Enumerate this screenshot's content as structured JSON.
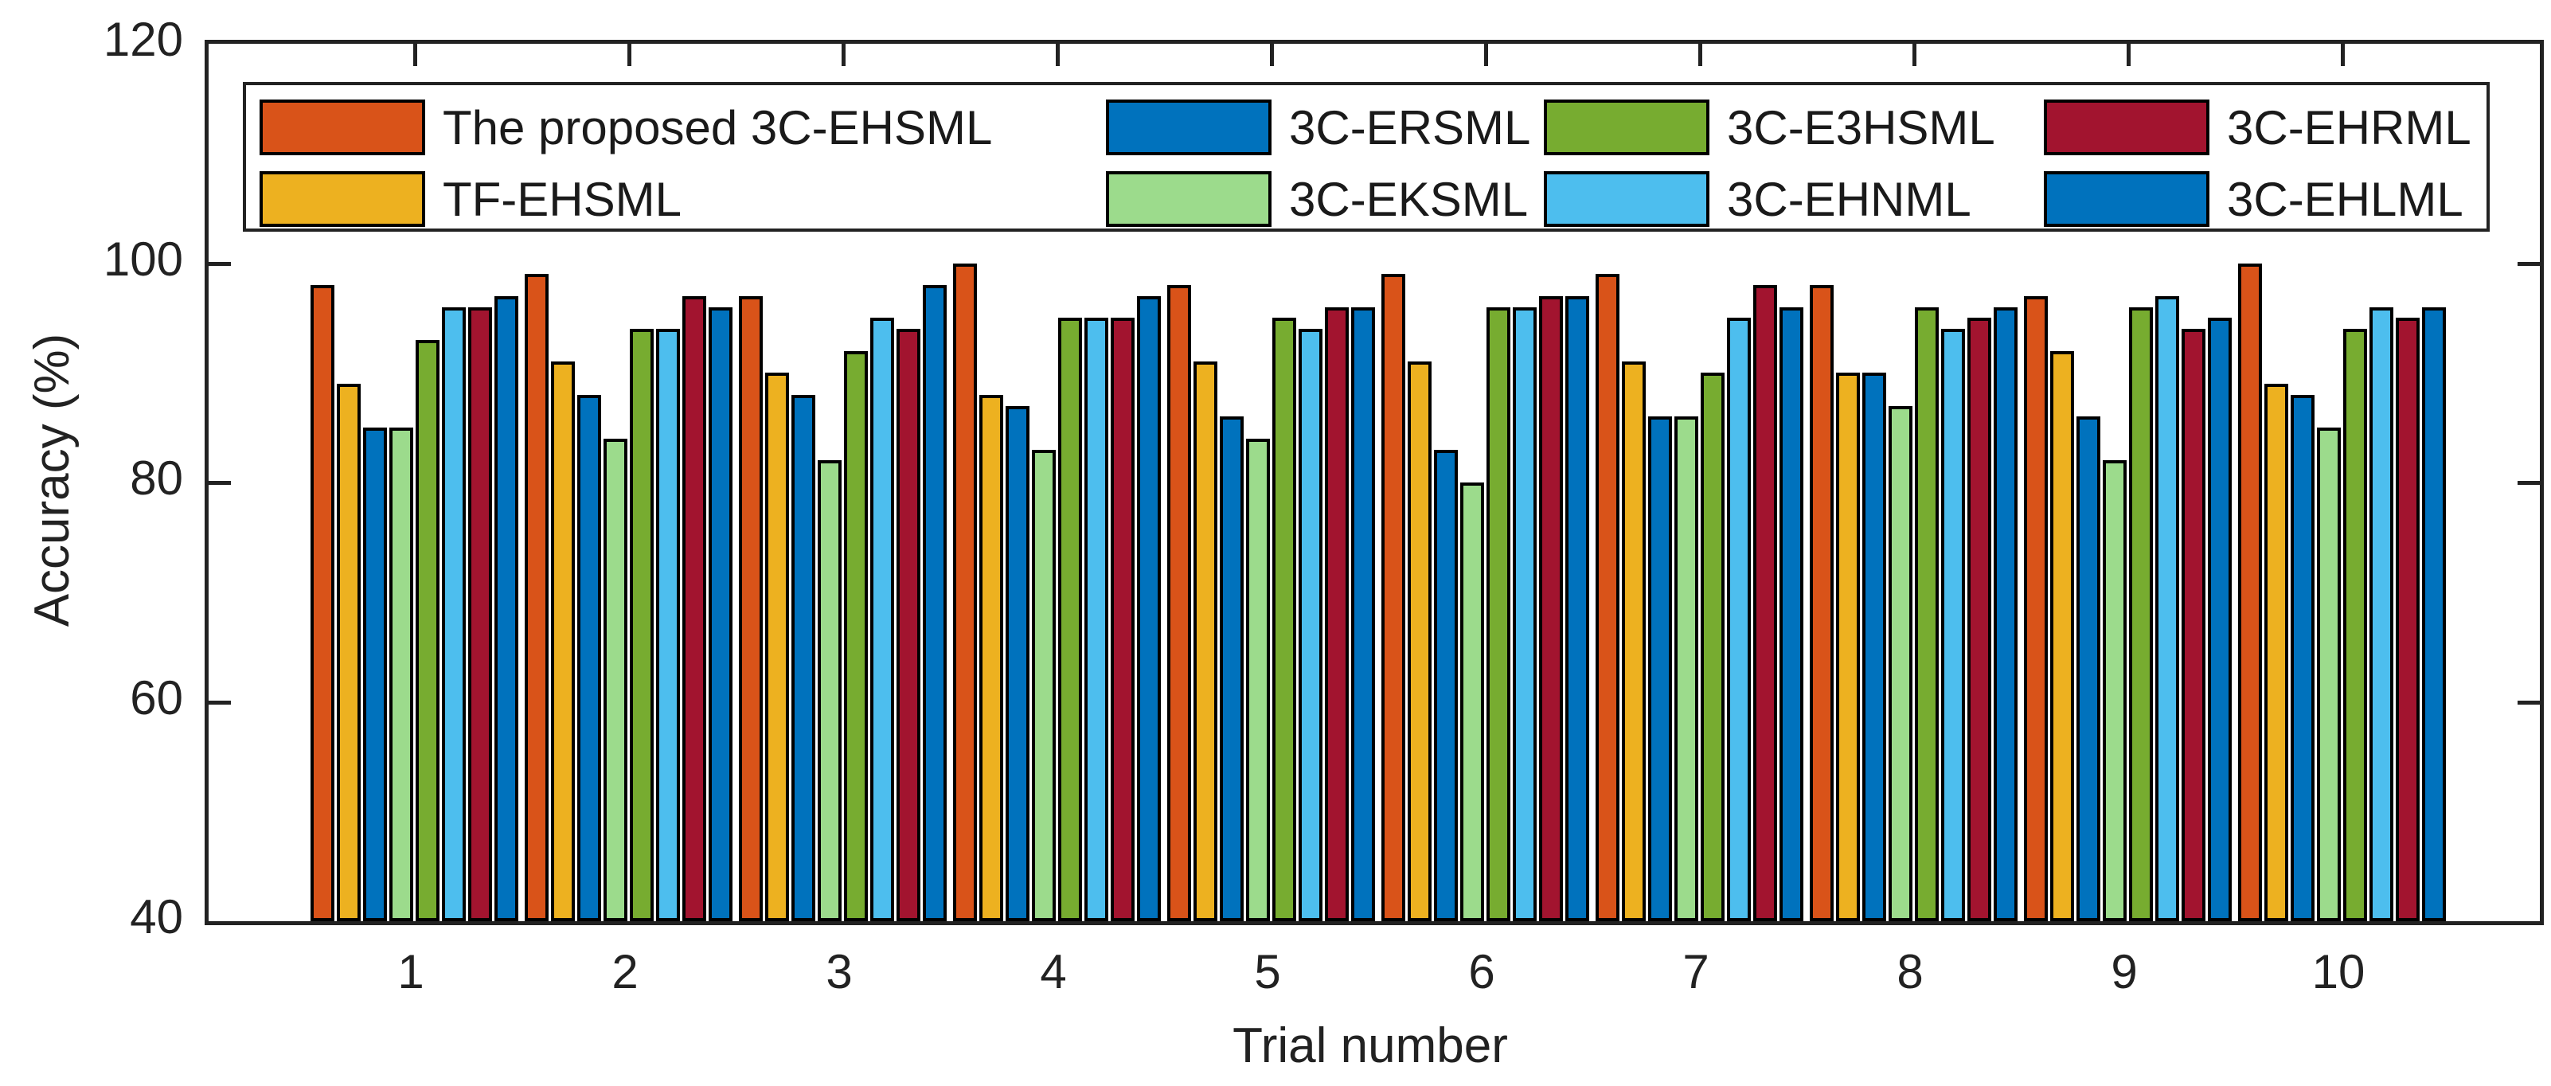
{
  "chart_data": {
    "type": "bar",
    "title": "",
    "xlabel": "Trial number",
    "ylabel": "Accuracy (%)",
    "ylim": [
      40,
      120
    ],
    "yticks": [
      40,
      60,
      80,
      100,
      120
    ],
    "y_tick_labels": [
      "40",
      "60",
      "80",
      "100",
      "120"
    ],
    "categories": [
      "1",
      "2",
      "3",
      "4",
      "5",
      "6",
      "7",
      "8",
      "9",
      "10"
    ],
    "grid": false,
    "legend_position": "top-inside",
    "legend_rows": 2,
    "legend_order": "column-major",
    "axis_color": "#222222",
    "bar_edge_color": "#000000",
    "series": [
      {
        "name": "The proposed 3C-EHSML",
        "color": "#D95319",
        "values": [
          98,
          99,
          97,
          100,
          98,
          99,
          99,
          98,
          97,
          100
        ]
      },
      {
        "name": "TF-EHSML",
        "color": "#EDB120",
        "values": [
          89,
          91,
          90,
          88,
          91,
          91,
          91,
          90,
          92,
          89
        ]
      },
      {
        "name": "3C-ERSML",
        "color": "#0072BD",
        "values": [
          85,
          88,
          88,
          87,
          86,
          83,
          86,
          90,
          86,
          88
        ]
      },
      {
        "name": "3C-EKSML",
        "color": "#9CDB8C",
        "values": [
          85,
          84,
          82,
          83,
          84,
          80,
          86,
          87,
          82,
          85
        ]
      },
      {
        "name": "3C-E3HSML",
        "color": "#77AC30",
        "values": [
          93,
          94,
          92,
          95,
          95,
          96,
          90,
          96,
          96,
          94
        ]
      },
      {
        "name": "3C-EHNML",
        "color": "#4DBEEE",
        "values": [
          96,
          94,
          95,
          95,
          94,
          96,
          95,
          94,
          97,
          96
        ]
      },
      {
        "name": "3C-EHRML",
        "color": "#A2142F",
        "values": [
          96,
          97,
          94,
          95,
          96,
          97,
          98,
          95,
          94,
          95
        ]
      },
      {
        "name": "3C-EHLML",
        "color": "#0072BD",
        "values": [
          97,
          96,
          98,
          97,
          96,
          97,
          96,
          96,
          95,
          96
        ]
      }
    ]
  }
}
